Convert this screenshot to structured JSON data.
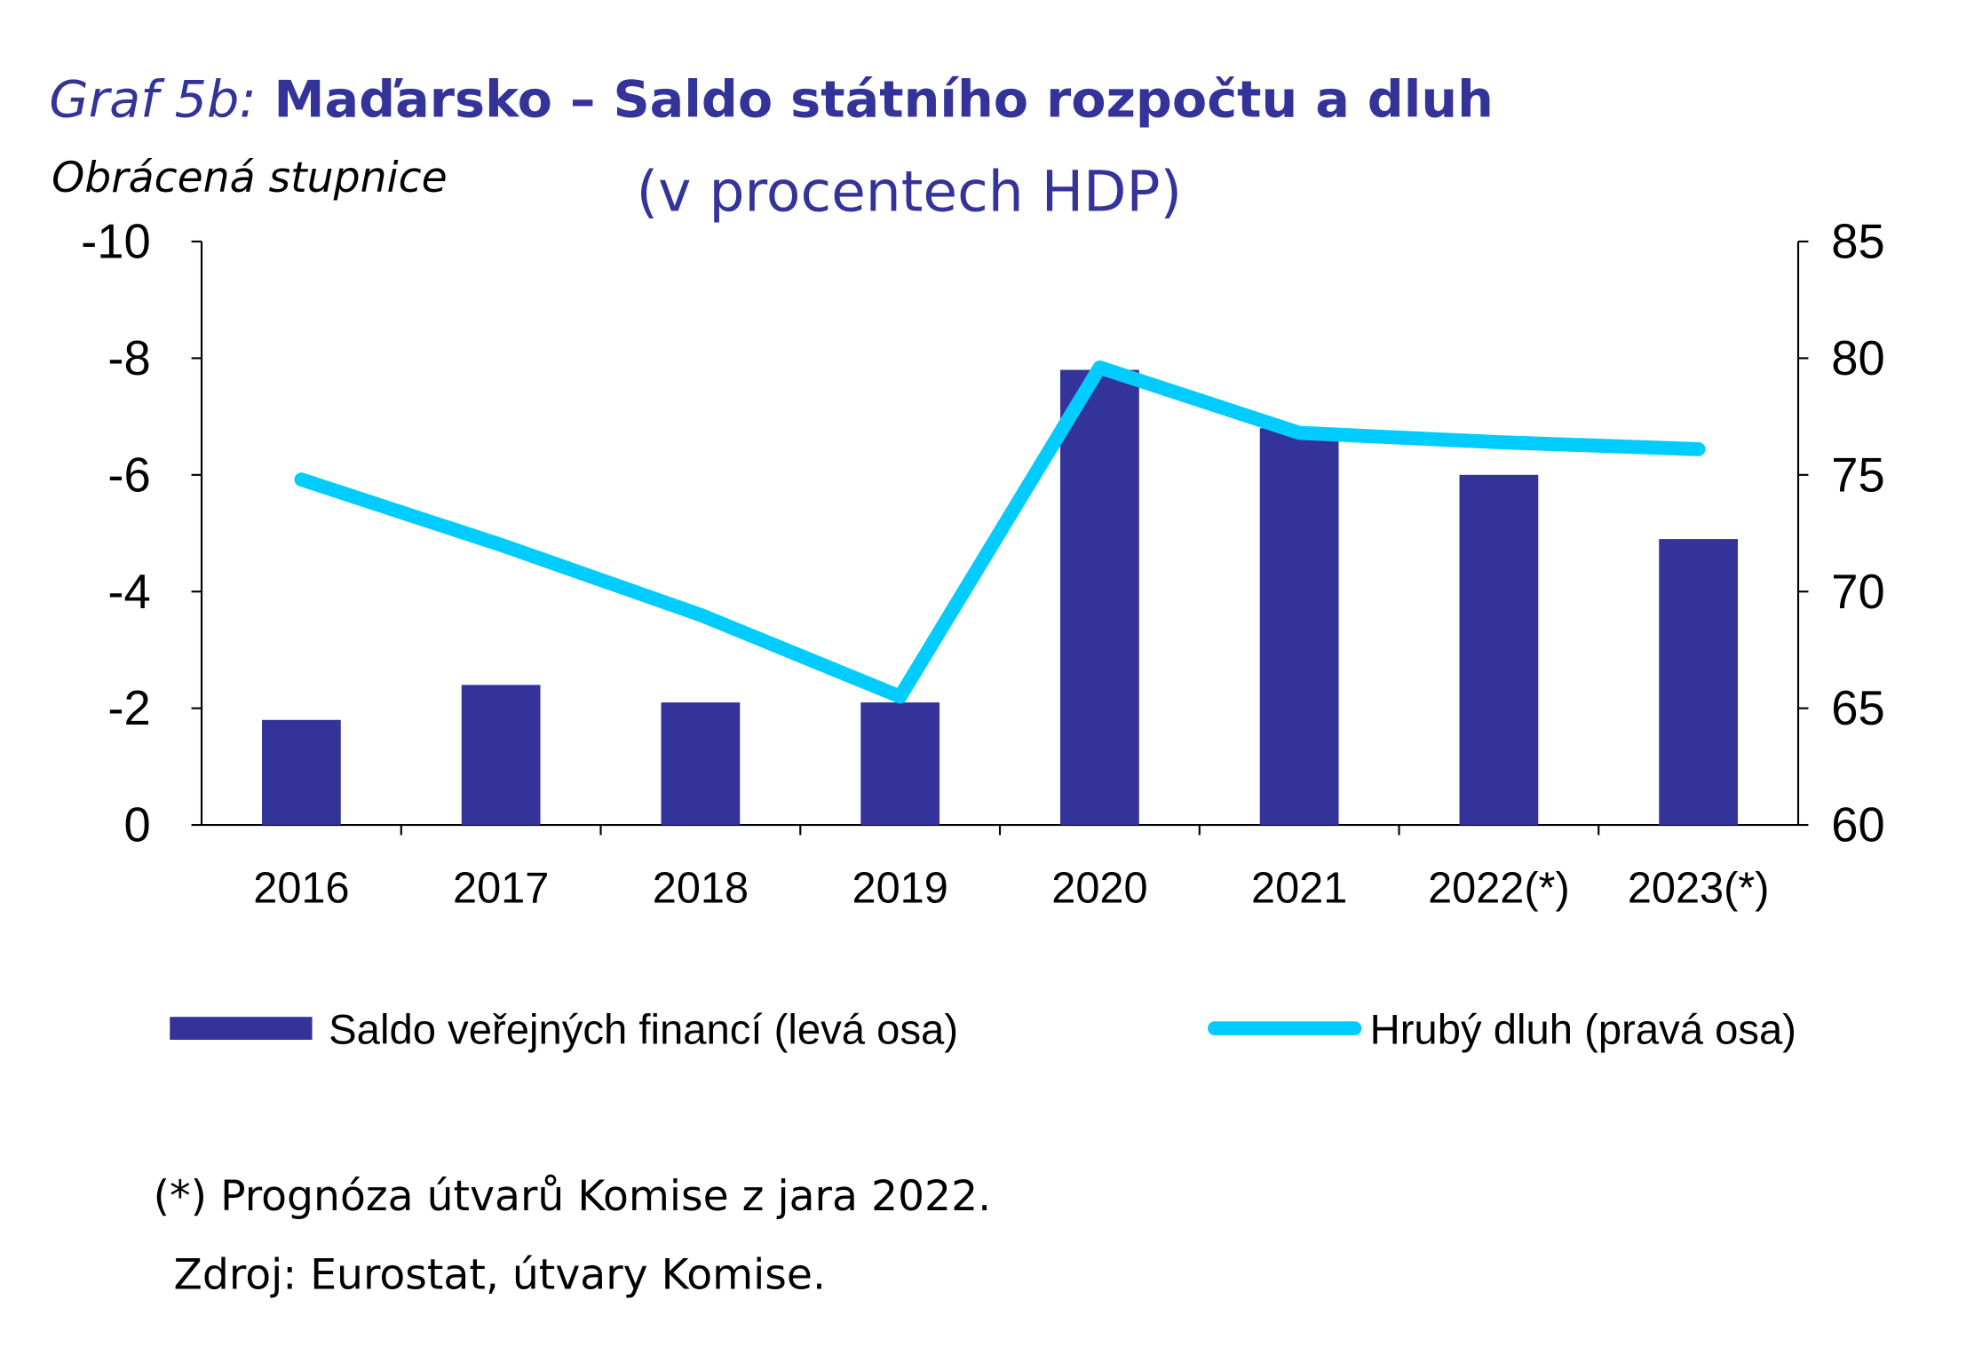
{
  "header": {
    "title_prefix": "Graf 5b:",
    "title_main": " Maďarsko – Saldo státního rozpočtu a dluh",
    "subtitle": "(v procentech HDP)",
    "scale_note": "Obrácená stupnice"
  },
  "chart_data": {
    "type": "bar+line",
    "title": "Graf 5b: Maďarsko – Saldo státního rozpočtu a dluh",
    "subtitle": "(v procentech HDP)",
    "categories": [
      "2016",
      "2017",
      "2018",
      "2019",
      "2020",
      "2021",
      "2022(*)",
      "2023(*)"
    ],
    "left_axis": {
      "range": [
        0,
        -10
      ],
      "inverted": true,
      "ticks": [
        "-10",
        "-8",
        "-6",
        "-4",
        "-2",
        "0"
      ],
      "note": "Obrácená stupnice"
    },
    "right_axis": {
      "range": [
        60,
        85
      ],
      "ticks": [
        "85",
        "80",
        "75",
        "70",
        "65",
        "60"
      ]
    },
    "grid": false,
    "legend_placement": "bottom",
    "series": [
      {
        "name": "Saldo veřejných financí (levá osa)",
        "type": "bar",
        "axis": "left",
        "color": "#333399",
        "values": [
          -1.8,
          -2.4,
          -2.1,
          -2.1,
          -7.8,
          -6.8,
          -6.0,
          -4.9
        ]
      },
      {
        "name": "Hrubý dluh (pravá osa)",
        "type": "line",
        "axis": "right",
        "color": "#00CCFF",
        "values": [
          74.8,
          72.0,
          69.0,
          65.5,
          79.6,
          76.8,
          76.4,
          76.1
        ]
      }
    ]
  },
  "footer": {
    "note": "(*) Prognóza útvarů Komise z jara 2022.",
    "source": "Zdroj: Eurostat, útvary Komise."
  }
}
